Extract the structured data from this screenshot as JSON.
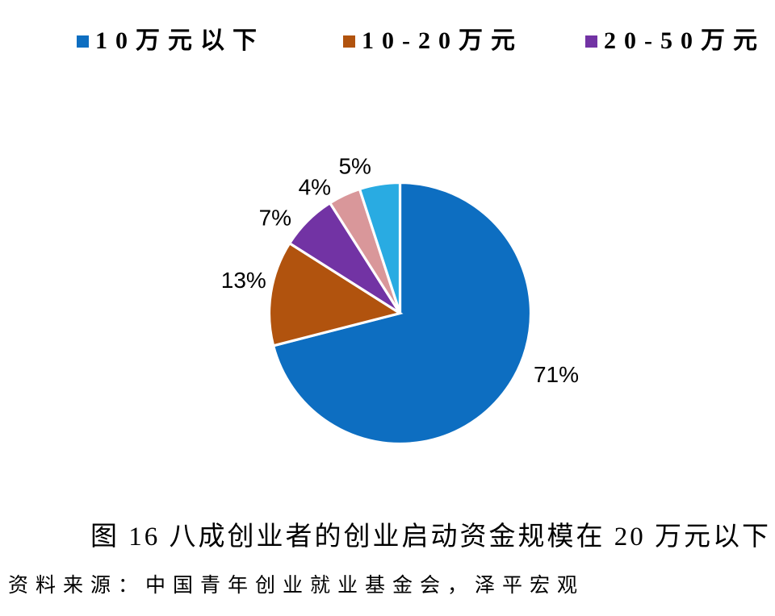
{
  "page": {
    "background_color": "#ffffff"
  },
  "legend": {
    "position": "top",
    "items": [
      {
        "label": "10万元以下",
        "color": "#0D6EC1"
      },
      {
        "label": "10-20万元",
        "color": "#B1530E"
      },
      {
        "label": "20-50万元",
        "color": "#7233A4"
      }
    ]
  },
  "chart_data": {
    "type": "pie",
    "title": "图 16 八成创业者的创业启动资金规模在 20 万元以下",
    "direction": "clockwise",
    "start_angle_deg": 0,
    "legend_position": "top",
    "slice_border_color": "#ffffff",
    "slices": [
      {
        "label": "10万元以下",
        "value": 71,
        "display": "71%",
        "color": "#0D6EC1"
      },
      {
        "label": "10-20万元",
        "value": 13,
        "display": "13%",
        "color": "#B1530E"
      },
      {
        "label": "20-50万元",
        "value": 7,
        "display": "7%",
        "color": "#7233A4"
      },
      {
        "label": "",
        "value": 4,
        "display": "4%",
        "color": "#D9979A"
      },
      {
        "label": "",
        "value": 5,
        "display": "5%",
        "color": "#29ABE2"
      }
    ]
  },
  "caption": {
    "text": "图 16 八成创业者的创业启动资金规模在 20 万元以下"
  },
  "source": {
    "text": "资料来源：中国青年创业就业基金会，泽平宏观"
  }
}
